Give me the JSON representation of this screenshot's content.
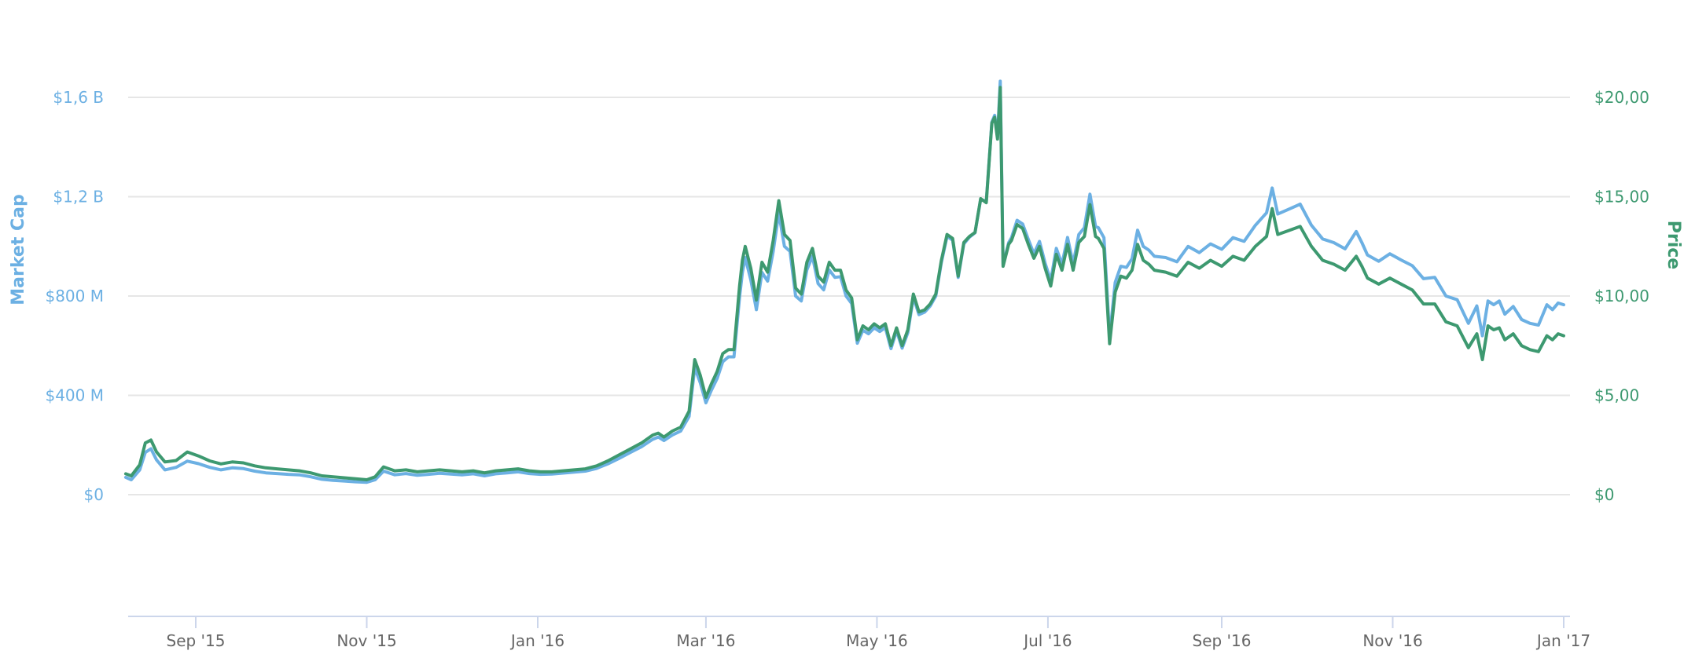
{
  "chart_data": {
    "type": "line",
    "title": "",
    "xlabel": "",
    "ylabel_left": "Market Cap",
    "ylabel_right": "Price",
    "legend": "none",
    "grid": true,
    "x_ticks": [
      "Sep '15",
      "Nov '15",
      "Jan '16",
      "Mar '16",
      "May '16",
      "Jul '16",
      "Sep '16",
      "Nov '16",
      "Jan '17"
    ],
    "y_left_ticks": [
      "$0",
      "$400 M",
      "$800 M",
      "$1,2 B",
      "$1,6 B"
    ],
    "y_right_ticks": [
      "$0",
      "$5,00",
      "$10,00",
      "$15,00",
      "$20,00"
    ],
    "y_left_range": [
      0,
      1600000000
    ],
    "y_right_range": [
      0,
      20
    ],
    "x_range": [
      "2015-08-07",
      "2017-01-02"
    ],
    "colors": {
      "market_cap": "#6cb0e3",
      "price": "#3d9970"
    },
    "x": [
      "2015-08-07",
      "2015-08-09",
      "2015-08-12",
      "2015-08-14",
      "2015-08-16",
      "2015-08-18",
      "2015-08-21",
      "2015-08-25",
      "2015-08-29",
      "2015-09-02",
      "2015-09-06",
      "2015-09-10",
      "2015-09-14",
      "2015-09-18",
      "2015-09-22",
      "2015-09-26",
      "2015-09-30",
      "2015-10-04",
      "2015-10-08",
      "2015-10-12",
      "2015-10-16",
      "2015-10-20",
      "2015-10-24",
      "2015-10-28",
      "2015-11-01",
      "2015-11-04",
      "2015-11-07",
      "2015-11-11",
      "2015-11-15",
      "2015-11-19",
      "2015-11-23",
      "2015-11-27",
      "2015-12-01",
      "2015-12-05",
      "2015-12-09",
      "2015-12-13",
      "2015-12-17",
      "2015-12-21",
      "2015-12-25",
      "2015-12-29",
      "2016-01-02",
      "2016-01-06",
      "2016-01-10",
      "2016-01-14",
      "2016-01-18",
      "2016-01-22",
      "2016-01-26",
      "2016-01-30",
      "2016-02-03",
      "2016-02-07",
      "2016-02-11",
      "2016-02-13",
      "2016-02-15",
      "2016-02-18",
      "2016-02-21",
      "2016-02-24",
      "2016-02-26",
      "2016-02-28",
      "2016-03-01",
      "2016-03-03",
      "2016-03-05",
      "2016-03-07",
      "2016-03-09",
      "2016-03-11",
      "2016-03-13",
      "2016-03-14",
      "2016-03-15",
      "2016-03-17",
      "2016-03-19",
      "2016-03-21",
      "2016-03-23",
      "2016-03-25",
      "2016-03-27",
      "2016-03-29",
      "2016-03-31",
      "2016-04-02",
      "2016-04-04",
      "2016-04-06",
      "2016-04-08",
      "2016-04-10",
      "2016-04-12",
      "2016-04-14",
      "2016-04-16",
      "2016-04-18",
      "2016-04-20",
      "2016-04-22",
      "2016-04-24",
      "2016-04-26",
      "2016-04-28",
      "2016-04-30",
      "2016-05-02",
      "2016-05-04",
      "2016-05-06",
      "2016-05-08",
      "2016-05-10",
      "2016-05-12",
      "2016-05-14",
      "2016-05-16",
      "2016-05-18",
      "2016-05-20",
      "2016-05-22",
      "2016-05-24",
      "2016-05-26",
      "2016-05-28",
      "2016-05-30",
      "2016-06-01",
      "2016-06-03",
      "2016-06-05",
      "2016-06-07",
      "2016-06-09",
      "2016-06-11",
      "2016-06-12",
      "2016-06-13",
      "2016-06-14",
      "2016-06-15",
      "2016-06-17",
      "2016-06-18",
      "2016-06-20",
      "2016-06-22",
      "2016-06-24",
      "2016-06-26",
      "2016-06-28",
      "2016-06-30",
      "2016-07-02",
      "2016-07-04",
      "2016-07-06",
      "2016-07-08",
      "2016-07-10",
      "2016-07-12",
      "2016-07-14",
      "2016-07-16",
      "2016-07-18",
      "2016-07-19",
      "2016-07-21",
      "2016-07-23",
      "2016-07-25",
      "2016-07-27",
      "2016-07-29",
      "2016-07-31",
      "2016-08-02",
      "2016-08-04",
      "2016-08-06",
      "2016-08-08",
      "2016-08-12",
      "2016-08-16",
      "2016-08-20",
      "2016-08-24",
      "2016-08-28",
      "2016-09-01",
      "2016-09-05",
      "2016-09-09",
      "2016-09-13",
      "2016-09-17",
      "2016-09-19",
      "2016-09-21",
      "2016-09-25",
      "2016-09-29",
      "2016-10-03",
      "2016-10-07",
      "2016-10-11",
      "2016-10-15",
      "2016-10-19",
      "2016-10-21",
      "2016-10-23",
      "2016-10-27",
      "2016-10-31",
      "2016-11-04",
      "2016-11-08",
      "2016-11-12",
      "2016-11-16",
      "2016-11-20",
      "2016-11-24",
      "2016-11-28",
      "2016-12-01",
      "2016-12-03",
      "2016-12-05",
      "2016-12-07",
      "2016-12-09",
      "2016-12-11",
      "2016-12-14",
      "2016-12-17",
      "2016-12-20",
      "2016-12-23",
      "2016-12-26",
      "2016-12-28",
      "2016-12-30",
      "2017-01-01"
    ],
    "series": [
      {
        "name": "Price",
        "axis": "right",
        "values": [
          1.05,
          0.95,
          1.5,
          2.6,
          2.75,
          2.15,
          1.65,
          1.72,
          2.15,
          1.95,
          1.7,
          1.55,
          1.65,
          1.6,
          1.45,
          1.35,
          1.3,
          1.25,
          1.2,
          1.1,
          0.95,
          0.9,
          0.85,
          0.8,
          0.75,
          0.9,
          1.4,
          1.2,
          1.25,
          1.15,
          1.2,
          1.25,
          1.2,
          1.15,
          1.2,
          1.1,
          1.2,
          1.25,
          1.3,
          1.2,
          1.15,
          1.15,
          1.2,
          1.25,
          1.3,
          1.45,
          1.7,
          2.0,
          2.3,
          2.6,
          3.0,
          3.1,
          2.9,
          3.2,
          3.4,
          4.2,
          6.8,
          6.0,
          4.9,
          5.6,
          6.2,
          7.1,
          7.3,
          7.3,
          10.5,
          11.8,
          12.5,
          11.4,
          9.8,
          11.7,
          11.2,
          12.8,
          14.8,
          13.1,
          12.8,
          10.4,
          10.1,
          11.7,
          12.4,
          11.0,
          10.7,
          11.7,
          11.3,
          11.3,
          10.3,
          9.9,
          7.8,
          8.5,
          8.3,
          8.6,
          8.4,
          8.6,
          7.5,
          8.4,
          7.5,
          8.3,
          10.1,
          9.2,
          9.3,
          9.6,
          10.1,
          11.8,
          13.1,
          12.9,
          11.0,
          12.7,
          13.0,
          13.2,
          14.9,
          14.7,
          18.7,
          19.0,
          17.9,
          20.5,
          11.5,
          12.6,
          12.8,
          13.6,
          13.4,
          12.6,
          11.9,
          12.5,
          11.4,
          10.5,
          12.1,
          11.3,
          12.6,
          11.3,
          12.7,
          13.0,
          14.6,
          13.0,
          12.9,
          12.4,
          7.6,
          10.2,
          11.0,
          10.9,
          11.3,
          12.6,
          11.8,
          11.6,
          11.3,
          11.2,
          11.0,
          11.7,
          11.4,
          11.8,
          11.5,
          12.0,
          11.8,
          12.5,
          13.0,
          14.4,
          13.1,
          13.3,
          13.5,
          12.5,
          11.8,
          11.6,
          11.3,
          12.0,
          11.5,
          10.9,
          10.6,
          10.9,
          10.6,
          10.3,
          9.6,
          9.6,
          8.7,
          8.5,
          7.4,
          8.1,
          6.8,
          8.5,
          8.3,
          8.4,
          7.8,
          8.1,
          7.5,
          7.3,
          7.2,
          8.0,
          7.8,
          8.1,
          8.0
        ]
      },
      {
        "name": "Market Cap",
        "axis": "left",
        "values": [
          70000000,
          60000000,
          100000000,
          170000000,
          185000000,
          140000000,
          100000000,
          110000000,
          135000000,
          125000000,
          110000000,
          100000000,
          108000000,
          105000000,
          95000000,
          88000000,
          85000000,
          82000000,
          80000000,
          72000000,
          62000000,
          58000000,
          55000000,
          52000000,
          50000000,
          60000000,
          95000000,
          80000000,
          85000000,
          78000000,
          82000000,
          86000000,
          83000000,
          80000000,
          84000000,
          76000000,
          84000000,
          88000000,
          92000000,
          85000000,
          82000000,
          83000000,
          87000000,
          91000000,
          95000000,
          106000000,
          124000000,
          146000000,
          170000000,
          193000000,
          223000000,
          232000000,
          218000000,
          240000000,
          256000000,
          315000000,
          512000000,
          450000000,
          370000000,
          422000000,
          468000000,
          535000000,
          555000000,
          555000000,
          795000000,
          895000000,
          955000000,
          865000000,
          745000000,
          895000000,
          860000000,
          980000000,
          1135000000,
          1000000000,
          980000000,
          800000000,
          780000000,
          905000000,
          960000000,
          850000000,
          825000000,
          905000000,
          875000000,
          878000000,
          800000000,
          770000000,
          610000000,
          662000000,
          648000000,
          672000000,
          657000000,
          673000000,
          588000000,
          660000000,
          590000000,
          652000000,
          795000000,
          725000000,
          735000000,
          760000000,
          800000000,
          935000000,
          1040000000,
          1025000000,
          875000000,
          1010000000,
          1037000000,
          1055000000,
          1190000000,
          1180000000,
          1500000000,
          1528000000,
          1440000000,
          1665000000,
          925000000,
          1015000000,
          1035000000,
          1105000000,
          1090000000,
          1028000000,
          970000000,
          1020000000,
          932000000,
          862000000,
          992000000,
          928000000,
          1036000000,
          930000000,
          1048000000,
          1075000000,
          1210000000,
          1080000000,
          1075000000,
          1035000000,
          635000000,
          855000000,
          920000000,
          915000000,
          950000000,
          1065000000,
          1000000000,
          985000000,
          960000000,
          955000000,
          938000000,
          1000000000,
          975000000,
          1010000000,
          988000000,
          1035000000,
          1020000000,
          1085000000,
          1135000000,
          1235000000,
          1130000000,
          1150000000,
          1170000000,
          1085000000,
          1030000000,
          1015000000,
          990000000,
          1060000000,
          1015000000,
          965000000,
          940000000,
          970000000,
          945000000,
          922000000,
          870000000,
          875000000,
          800000000,
          785000000,
          690000000,
          760000000,
          640000000,
          780000000,
          765000000,
          780000000,
          727000000,
          758000000,
          705000000,
          690000000,
          683000000,
          765000000,
          745000000,
          772000000,
          765000000
        ]
      }
    ]
  }
}
